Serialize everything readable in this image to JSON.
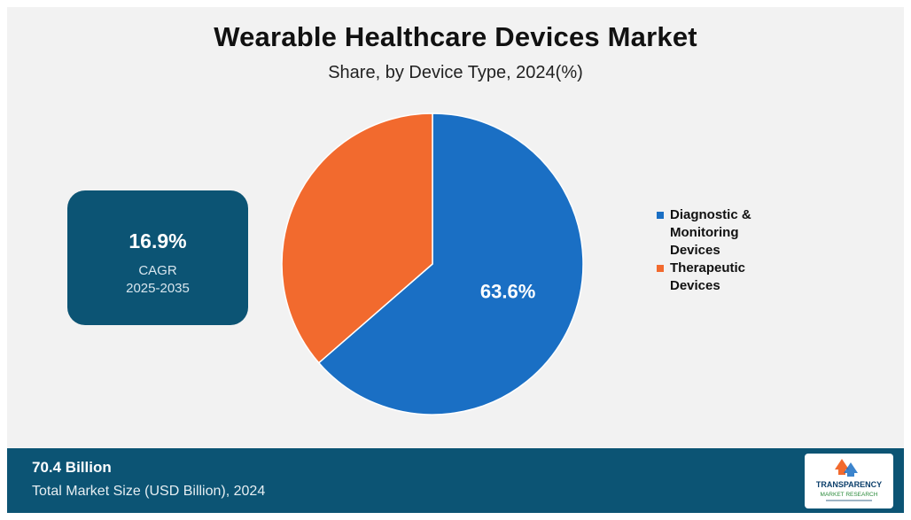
{
  "title": "Wearable Healthcare Devices Market",
  "subtitle": "Share, by Device Type, 2024(%)",
  "cagr": {
    "value": "16.9%",
    "label": "CAGR",
    "period": "2025-2035"
  },
  "chart_data": {
    "type": "pie",
    "title": "Wearable Healthcare Devices Market",
    "subtitle": "Share, by Device Type, 2024(%)",
    "slices": [
      {
        "label": "Diagnostic & Monitoring Devices",
        "value": 63.6,
        "color": "#1a6fc4",
        "data_label": "63.6%"
      },
      {
        "label": "Therapeutic Devices",
        "value": 36.4,
        "color": "#f26a2e",
        "data_label": ""
      }
    ],
    "legend_position": "right"
  },
  "legend": [
    {
      "label": "Diagnostic & Monitoring Devices",
      "color": "#1a6fc4"
    },
    {
      "label": "Therapeutic Devices",
      "color": "#f26a2e"
    }
  ],
  "footer": {
    "market_size": "70.4 Billion",
    "caption": "Total Market Size (USD Billion), 2024"
  },
  "logo": {
    "line1": "TRANSPARENCY",
    "line2": "MARKET RESEARCH"
  }
}
